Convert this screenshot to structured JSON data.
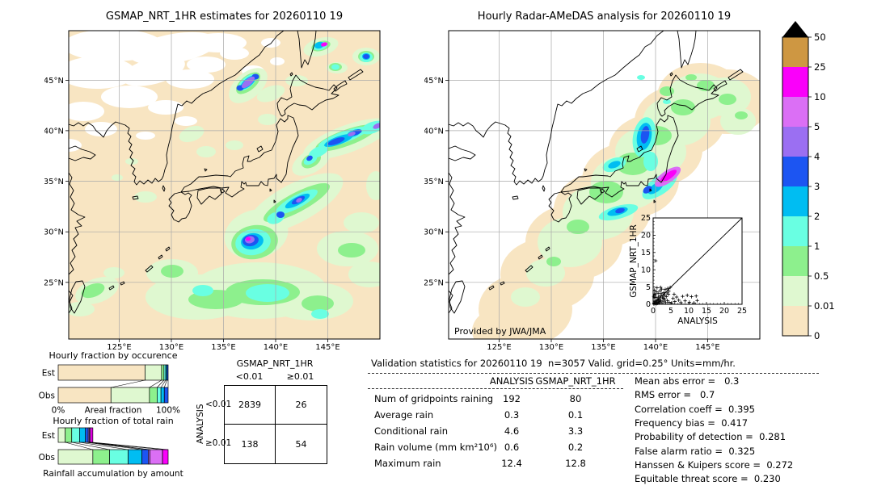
{
  "figure": {
    "background": "#ffffff"
  },
  "maps": {
    "left": {
      "title": "GSMAP_NRT_1HR estimates for 20260110 19",
      "x_ticks": [
        "125°E",
        "130°E",
        "135°E",
        "140°E",
        "145°E"
      ],
      "y_ticks": [
        "45°N",
        "40°N",
        "35°N",
        "30°N",
        "25°N"
      ]
    },
    "right": {
      "title": "Hourly Radar-AMeDAS analysis for 20260110 19",
      "x_ticks": [
        "125°E",
        "130°E",
        "135°E",
        "140°E",
        "145°E"
      ],
      "y_ticks": [
        "45°N",
        "40°N",
        "35°N",
        "30°N",
        "25°N"
      ],
      "credit": "Provided by JWA/JMA"
    }
  },
  "chart_data": [
    {
      "id": "hourly-fraction-by-occurrence",
      "type": "bar",
      "stacked": true,
      "orientation": "horizontal",
      "title": "Hourly fraction by occurence",
      "xlabel": "Areal fraction",
      "x_axis_labels": [
        "0%",
        "100%"
      ],
      "categories": [
        "Est",
        "Obs"
      ],
      "segment_colors": [
        "#f8e5c2",
        "#dff8d0",
        "#8df08d",
        "#69ffe2",
        "#00bdf2",
        "#1c55f2"
      ],
      "series": [
        {
          "name": "Est",
          "values_pct": [
            79,
            15,
            2.2,
            1.6,
            1.1,
            1.1
          ]
        },
        {
          "name": "Obs",
          "values_pct": [
            48,
            35,
            7,
            3.5,
            3,
            3.5
          ]
        }
      ]
    },
    {
      "id": "hourly-fraction-of-total-rain",
      "type": "bar",
      "stacked": true,
      "orientation": "horizontal",
      "title": "Hourly fraction of total rain",
      "xlabel": "Rainfall accumulation by amount",
      "categories": [
        "Est",
        "Obs"
      ],
      "segment_colors": [
        "#dff8d0",
        "#8df08d",
        "#69ffe2",
        "#00bdf2",
        "#1c55f2",
        "#9b6ff2",
        "#db6ff5",
        "#fa00fa"
      ],
      "series": [
        {
          "name": "Est",
          "values_pct": [
            6.4,
            5.9,
            7.1,
            5.4,
            2.5,
            1.0,
            1.1,
            2.1
          ]
        },
        {
          "name": "Obs",
          "values_pct": [
            31.5,
            15.2,
            17.0,
            12.5,
            5.7,
            1.5,
            11.5,
            5.1
          ]
        }
      ]
    },
    {
      "id": "gsmap-vs-analysis-scatter",
      "type": "scatter",
      "xlabel": "ANALYSIS",
      "ylabel": "GSMAP_NRT_1HR",
      "xlim": [
        0,
        25
      ],
      "ylim": [
        0,
        25
      ],
      "ticks": [
        0,
        5,
        10,
        15,
        20,
        25
      ],
      "identity_line": true,
      "marker": "+",
      "points": [
        [
          0.2,
          0.1
        ],
        [
          0.3,
          0.4
        ],
        [
          0.5,
          0.2
        ],
        [
          0.5,
          0.8
        ],
        [
          0.7,
          0.3
        ],
        [
          0.8,
          1.1
        ],
        [
          1.0,
          0.2
        ],
        [
          1.0,
          0.6
        ],
        [
          1.2,
          1.4
        ],
        [
          1.3,
          0.3
        ],
        [
          1.5,
          0.9
        ],
        [
          1.5,
          2.1
        ],
        [
          1.7,
          0.4
        ],
        [
          1.8,
          1.6
        ],
        [
          2.0,
          0.7
        ],
        [
          2.0,
          2.4
        ],
        [
          2.2,
          1.1
        ],
        [
          2.3,
          3.1
        ],
        [
          2.5,
          0.4
        ],
        [
          2.6,
          1.9
        ],
        [
          2.8,
          2.6
        ],
        [
          3.0,
          0.9
        ],
        [
          3.0,
          3.4
        ],
        [
          3.2,
          1.5
        ],
        [
          3.4,
          4.3
        ],
        [
          3.5,
          0.5
        ],
        [
          3.7,
          2.2
        ],
        [
          4.0,
          1.1
        ],
        [
          4.1,
          4.6
        ],
        [
          4.3,
          2.9
        ],
        [
          4.5,
          0.6
        ],
        [
          0.3,
          1.9
        ],
        [
          0.6,
          2.8
        ],
        [
          0.9,
          3.6
        ],
        [
          1.1,
          4.8
        ],
        [
          0.4,
          4.1
        ],
        [
          1.9,
          3.9
        ],
        [
          2.4,
          4.4
        ],
        [
          3.9,
          3.3
        ],
        [
          0.7,
          12.6
        ],
        [
          5.2,
          0.4
        ],
        [
          5.6,
          1.7
        ],
        [
          6.1,
          0.8
        ],
        [
          6.6,
          2.1
        ],
        [
          7.2,
          1.2
        ],
        [
          7.8,
          0.5
        ],
        [
          8.3,
          2.3
        ],
        [
          9.0,
          1.0
        ],
        [
          9.6,
          2.6
        ],
        [
          10.2,
          0.6
        ],
        [
          10.8,
          2.2
        ],
        [
          11.5,
          0.4
        ],
        [
          12.1,
          2.4
        ],
        [
          12.4,
          1.1
        ],
        [
          4.8,
          4.9
        ],
        [
          2.1,
          4.9
        ],
        [
          1.4,
          3.2
        ],
        [
          0.2,
          2.3
        ],
        [
          0.8,
          2.0
        ],
        [
          1.6,
          1.2
        ],
        [
          2.9,
          1.8
        ],
        [
          3.3,
          2.7
        ],
        [
          4.4,
          3.8
        ],
        [
          0.4,
          3.0
        ],
        [
          5.9,
          2.9
        ]
      ]
    },
    {
      "id": "contingency-table",
      "type": "table",
      "title": "GSMAP_NRT_1HR",
      "col_labels": [
        "<0.01",
        "≥0.01"
      ],
      "row_axis_label": "ANALYSIS",
      "row_labels": [
        "<0.01",
        "≥0.01"
      ],
      "cells": [
        [
          "2839",
          "26"
        ],
        [
          "138",
          "54"
        ]
      ]
    },
    {
      "id": "validation-statistics",
      "type": "table",
      "title": "Validation statistics for 20260110 19  n=3057 Valid. grid=0.25° Units=mm/hr.",
      "col_headers": [
        "ANALYSIS",
        "GSMAP_NRT_1HR"
      ],
      "rows": [
        [
          "Num of gridpoints raining",
          "192",
          "80"
        ],
        [
          "Average rain",
          "0.3",
          "0.1"
        ],
        [
          "Conditional rain",
          "4.6",
          "3.3"
        ],
        [
          "Rain volume (mm km²10⁶)",
          "0.6",
          "0.2"
        ],
        [
          "Maximum rain",
          "12.4",
          "12.8"
        ]
      ],
      "metrics": [
        {
          "label": "Mean abs error",
          "value": "0.3"
        },
        {
          "label": "RMS error",
          "value": "0.7"
        },
        {
          "label": "Correlation coeff",
          "value": "0.395"
        },
        {
          "label": "Frequency bias",
          "value": "0.417"
        },
        {
          "label": "Probability of detection",
          "value": "0.281"
        },
        {
          "label": "False alarm ratio",
          "value": "0.325"
        },
        {
          "label": "Hanssen & Kuipers score",
          "value": "0.272"
        },
        {
          "label": "Equitable threat score",
          "value": "0.230"
        }
      ]
    },
    {
      "id": "precip-colorbar",
      "type": "heatmap",
      "units": "mm/hr",
      "levels_bottom_to_top": [
        "0",
        "0.01",
        "0.5",
        "1",
        "2",
        "3",
        "4",
        "5",
        "10",
        "25",
        "50"
      ],
      "colors_bottom_to_top": [
        "#f8e5c2",
        "#dff8d0",
        "#8df08d",
        "#69ffe2",
        "#00bdf2",
        "#1c55f2",
        "#9b6ff2",
        "#db6ff5",
        "#fa00fa",
        "#ce9742"
      ],
      "overflow_color": "#000000"
    }
  ]
}
